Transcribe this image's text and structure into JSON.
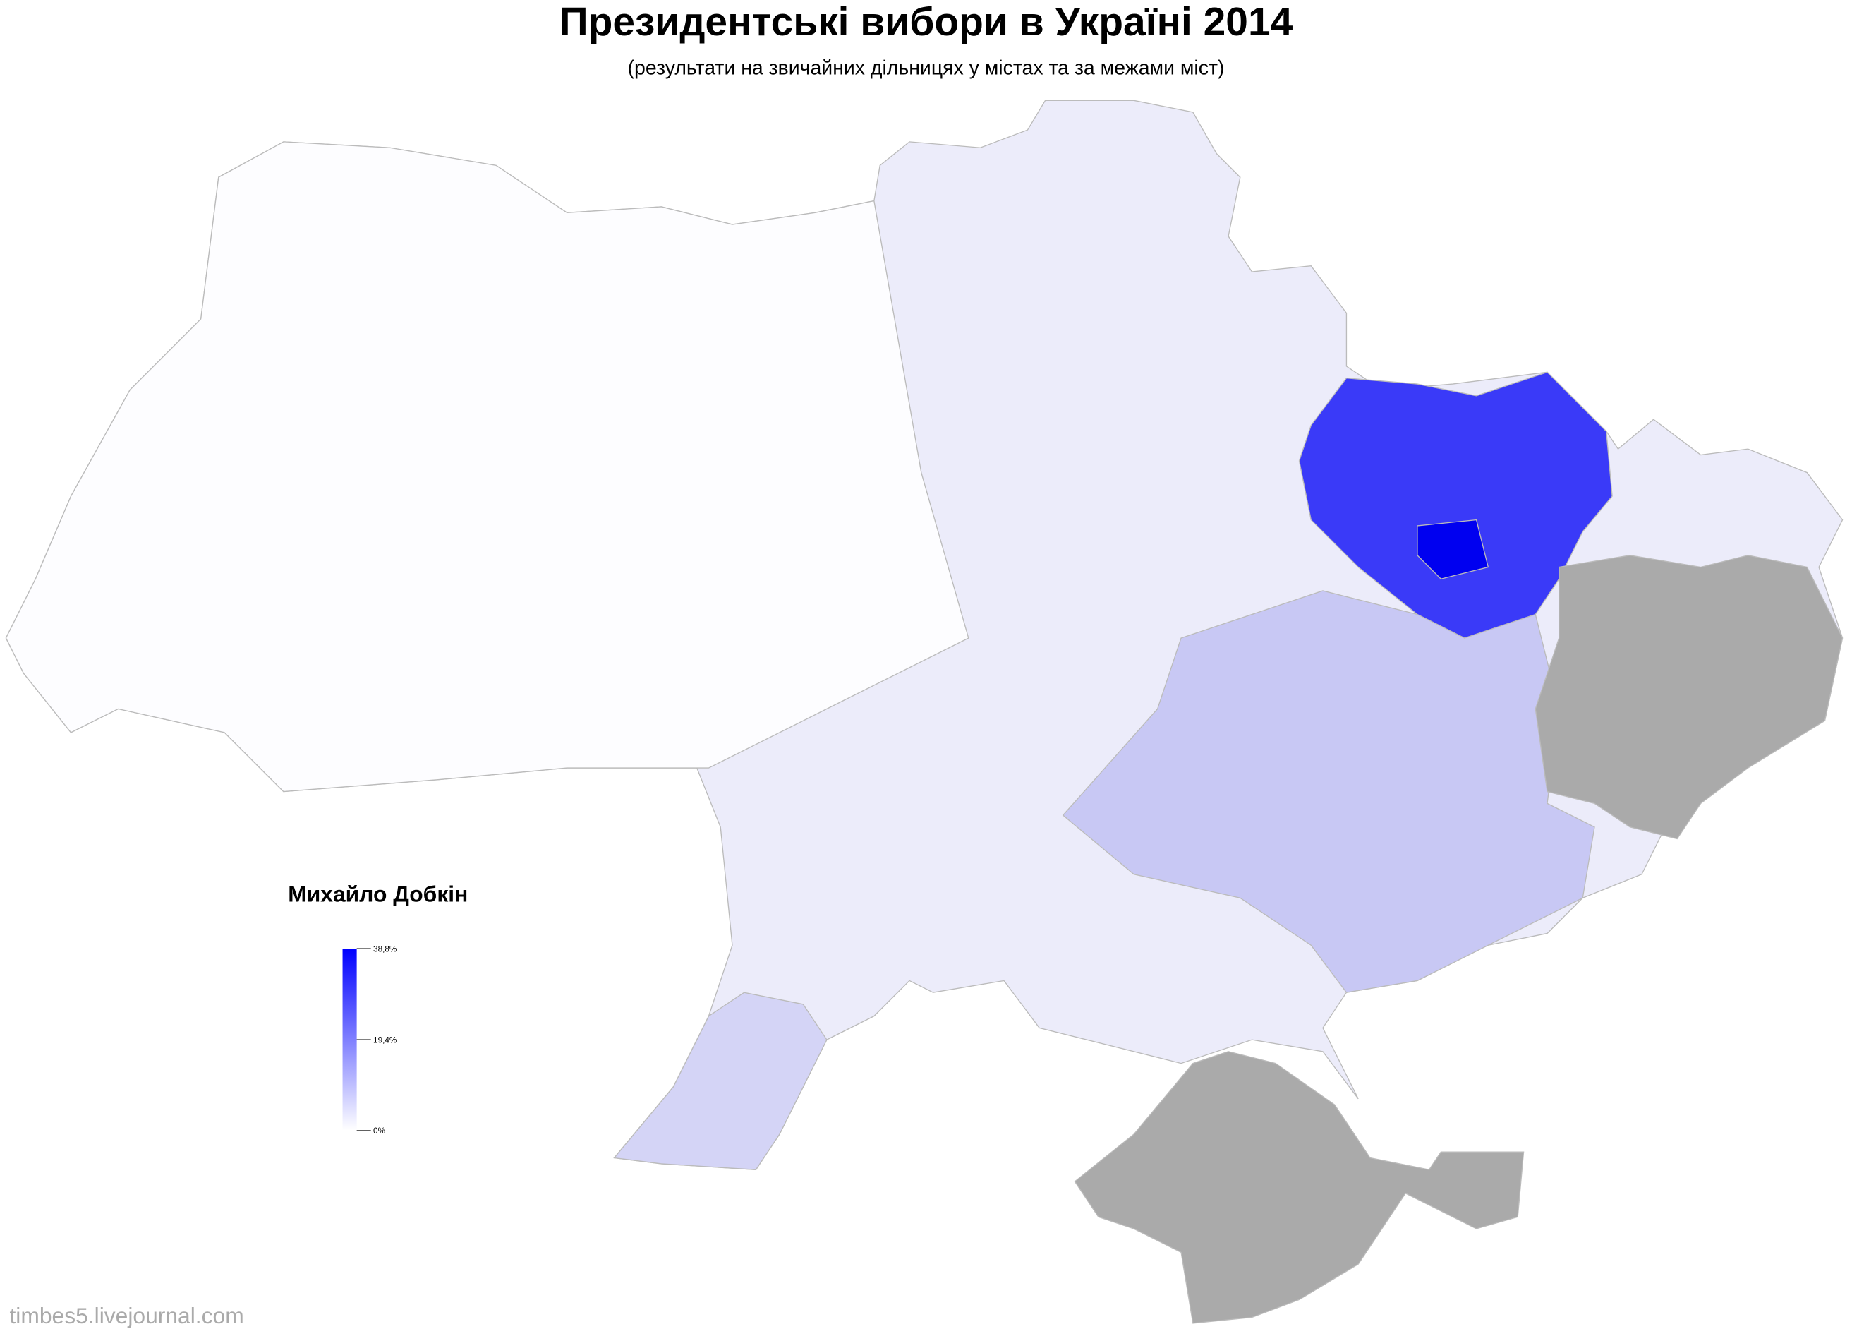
{
  "title": "Президентські вибори в Україні 2014",
  "subtitle": "(результати на звичайних дільницях у містах та за межами міст)",
  "legend": {
    "title": "Михайло Добкін",
    "colors": [
      "#ffffff",
      "#0000ff"
    ],
    "ticks": [
      {
        "value": 38.8,
        "label": "38,8%"
      },
      {
        "value": 19.4,
        "label": "19,4%"
      },
      {
        "value": 0,
        "label": "0%"
      }
    ]
  },
  "credit": "timbes5.livejournal.com"
}
